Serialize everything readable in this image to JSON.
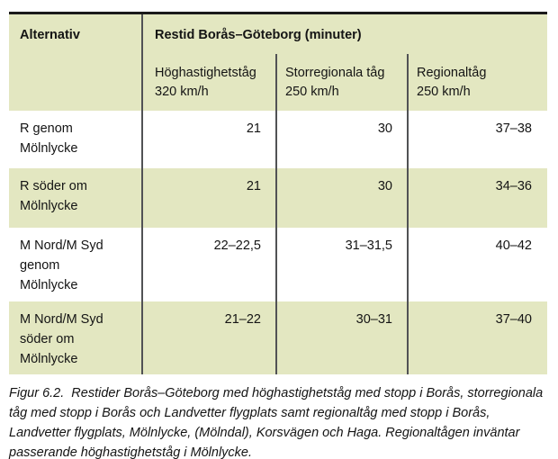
{
  "table": {
    "col1_header": "Alternativ",
    "main_header": "Restid Borås–Göteborg (minuter)",
    "sub_headers": [
      "Höghastighetståg\n320 km/h",
      "Storregionala tåg\n250 km/h",
      "Regionaltåg\n250 km/h"
    ],
    "rows": [
      {
        "label": "R genom\nMölnlycke",
        "values": [
          "21",
          "30",
          "37–38"
        ]
      },
      {
        "label": "R söder om\nMölnlycke",
        "values": [
          "21",
          "30",
          "34–36"
        ]
      },
      {
        "label": "M Nord/M Syd\ngenom\nMölnlycke",
        "values": [
          "22–22,5",
          "31–31,5",
          "40–42"
        ]
      },
      {
        "label": "M Nord/M Syd\nsöder om\nMölnlycke",
        "values": [
          "21–22",
          "30–31",
          "37–40"
        ]
      }
    ]
  },
  "caption": {
    "text": "Figur 6.2.  Restider Borås–Göteborg med höghastighetståg med stopp i Borås, storregionala\ntåg med stopp i Borås och Landvetter flygplats samt regionaltåg med stopp i Borås,\nLandvetter flygplats, Mölnlycke, (Mölndal), Korsvägen och Haga. Regionaltågen inväntar\npasserande höghastighetståg i Mölnlycke."
  },
  "colors": {
    "row_green": "#e3e7c1",
    "divider_gray": "#515255",
    "border_black": "#1a1a1a"
  }
}
